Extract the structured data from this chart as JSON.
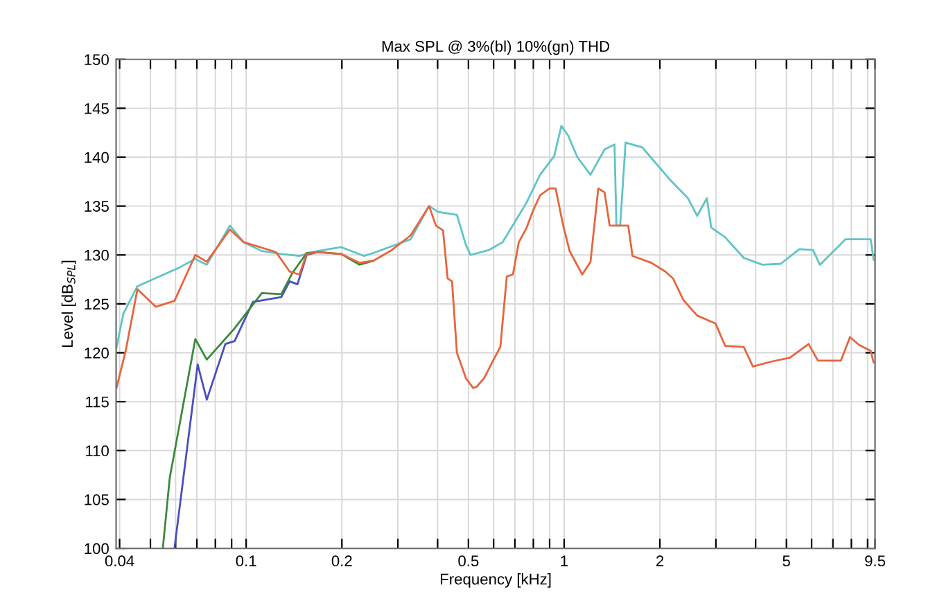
{
  "chart_data": {
    "type": "line",
    "title": "Max SPL @ 3%(bl) 10%(gn) THD",
    "xlabel": "Frequency [kHz]",
    "ylabel": "Level [dB$_{SPL}$]",
    "log": "x",
    "xlim": [
      0.039,
      9.5
    ],
    "ylim": [
      100,
      150
    ],
    "xticks": [
      0.04,
      {
        "value": 0.05,
        "label": null
      },
      {
        "value": 0.06,
        "label": null
      },
      {
        "value": 0.07,
        "label": null
      },
      {
        "value": 0.08,
        "label": null
      },
      {
        "value": 0.09,
        "label": null
      },
      0.1,
      0.2,
      {
        "value": 0.3,
        "label": null
      },
      {
        "value": 0.4,
        "label": null
      },
      0.5,
      {
        "value": 0.6,
        "label": null
      },
      {
        "value": 0.7,
        "label": null
      },
      {
        "value": 0.8,
        "label": null
      },
      {
        "value": 0.9,
        "label": null
      },
      1,
      2,
      {
        "value": 3,
        "label": null
      },
      {
        "value": 4,
        "label": null
      },
      5,
      {
        "value": 6,
        "label": null
      },
      {
        "value": 7,
        "label": null
      },
      {
        "value": 8,
        "label": null
      },
      {
        "value": 9,
        "label": null
      },
      9.5
    ],
    "yticks": [
      100,
      105,
      110,
      115,
      120,
      125,
      130,
      135,
      140,
      145,
      150
    ],
    "grid": true,
    "marker": "none",
    "line_style": "solid",
    "series": [
      {
        "color": "#5fc4c4",
        "x": [
          0.0391,
          0.0411,
          0.0455,
          0.0615,
          0.0692,
          0.0752,
          0.0889,
          0.0983,
          0.112,
          0.129,
          0.147,
          0.168,
          0.199,
          0.235,
          0.251,
          0.329,
          0.376,
          0.402,
          0.46,
          0.491,
          0.508,
          0.58,
          0.64,
          0.76,
          0.84,
          0.93,
          0.98,
          1.03,
          1.1,
          1.21,
          1.34,
          1.44,
          1.46,
          1.5,
          1.56,
          1.76,
          1.94,
          2.15,
          2.45,
          2.62,
          2.81,
          2.9,
          3.21,
          3.67,
          4.2,
          4.8,
          5.49,
          6.06,
          6.37,
          7.66,
          9.2,
          9.4
        ],
        "values": [
          120.5,
          124,
          126.8,
          128.7,
          129.6,
          129,
          133,
          131.3,
          130.4,
          130.1,
          129.9,
          130.4,
          130.8,
          129.9,
          130.2,
          131.6,
          135,
          134.4,
          134.1,
          131,
          130,
          130.5,
          131.3,
          135.3,
          138.2,
          140.1,
          143.2,
          142.2,
          140,
          138.2,
          140.8,
          141.3,
          133,
          133,
          141.5,
          141,
          139.4,
          137.7,
          135.8,
          134,
          135.8,
          132.8,
          131.8,
          129.7,
          129,
          129.1,
          130.6,
          130.5,
          129,
          131.6,
          131.6,
          129.5
        ]
      },
      {
        "color": "#4a4fc0",
        "x": [
          0.0595,
          0.0704,
          0.0752,
          0.086,
          0.092,
          0.105,
          0.129,
          0.137,
          0.145,
          0.155,
          0.168
        ],
        "values": [
          100,
          118.8,
          115.2,
          120.9,
          121.2,
          125.2,
          125.7,
          127.3,
          127,
          130,
          130.3
        ]
      },
      {
        "color": "#3a8a3a",
        "x": [
          0.0547,
          0.0575,
          0.0692,
          0.0752,
          0.092,
          0.112,
          0.129,
          0.14,
          0.155,
          0.168,
          0.199,
          0.227,
          0.251
        ],
        "values": [
          100,
          107.2,
          121.4,
          119.3,
          122.5,
          126.1,
          126,
          128.2,
          130.2,
          130.3,
          130.1,
          129,
          129.4
        ]
      },
      {
        "color": "#e8643c",
        "x": [
          0.0391,
          0.0418,
          0.0455,
          0.052,
          0.0595,
          0.0692,
          0.0752,
          0.0889,
          0.0983,
          0.124,
          0.137,
          0.147,
          0.155,
          0.168,
          0.199,
          0.227,
          0.251,
          0.287,
          0.329,
          0.376,
          0.395,
          0.416,
          0.43,
          0.444,
          0.46,
          0.491,
          0.517,
          0.53,
          0.56,
          0.6,
          0.63,
          0.66,
          0.69,
          0.72,
          0.76,
          0.8,
          0.84,
          0.9,
          0.94,
          0.99,
          1.04,
          1.14,
          1.21,
          1.28,
          1.34,
          1.39,
          1.59,
          1.64,
          1.88,
          2.08,
          2.2,
          2.37,
          2.62,
          2.99,
          3.21,
          3.67,
          3.92,
          4.49,
          5.13,
          5.87,
          6.28,
          7.42,
          7.92,
          8.46,
          9.2,
          9.4
        ],
        "values": [
          116.4,
          120.2,
          126.5,
          124.7,
          125.3,
          130,
          129.3,
          132.6,
          131.3,
          130.3,
          128.3,
          128,
          130.1,
          130.3,
          130.1,
          129.2,
          129.4,
          130.5,
          132,
          135,
          133,
          132.5,
          127.6,
          127.3,
          120,
          117.4,
          116.4,
          116.5,
          117.4,
          119.3,
          120.6,
          127.8,
          128,
          131.3,
          132.7,
          134.6,
          136.1,
          136.8,
          136.8,
          133.2,
          130.4,
          128,
          129.3,
          136.8,
          136.4,
          133,
          133,
          129.9,
          129.2,
          128.3,
          127.6,
          125.4,
          123.8,
          123,
          120.7,
          120.6,
          118.6,
          119.1,
          119.5,
          120.9,
          119.2,
          119.2,
          121.6,
          120.8,
          120.2,
          119
        ]
      }
    ]
  }
}
